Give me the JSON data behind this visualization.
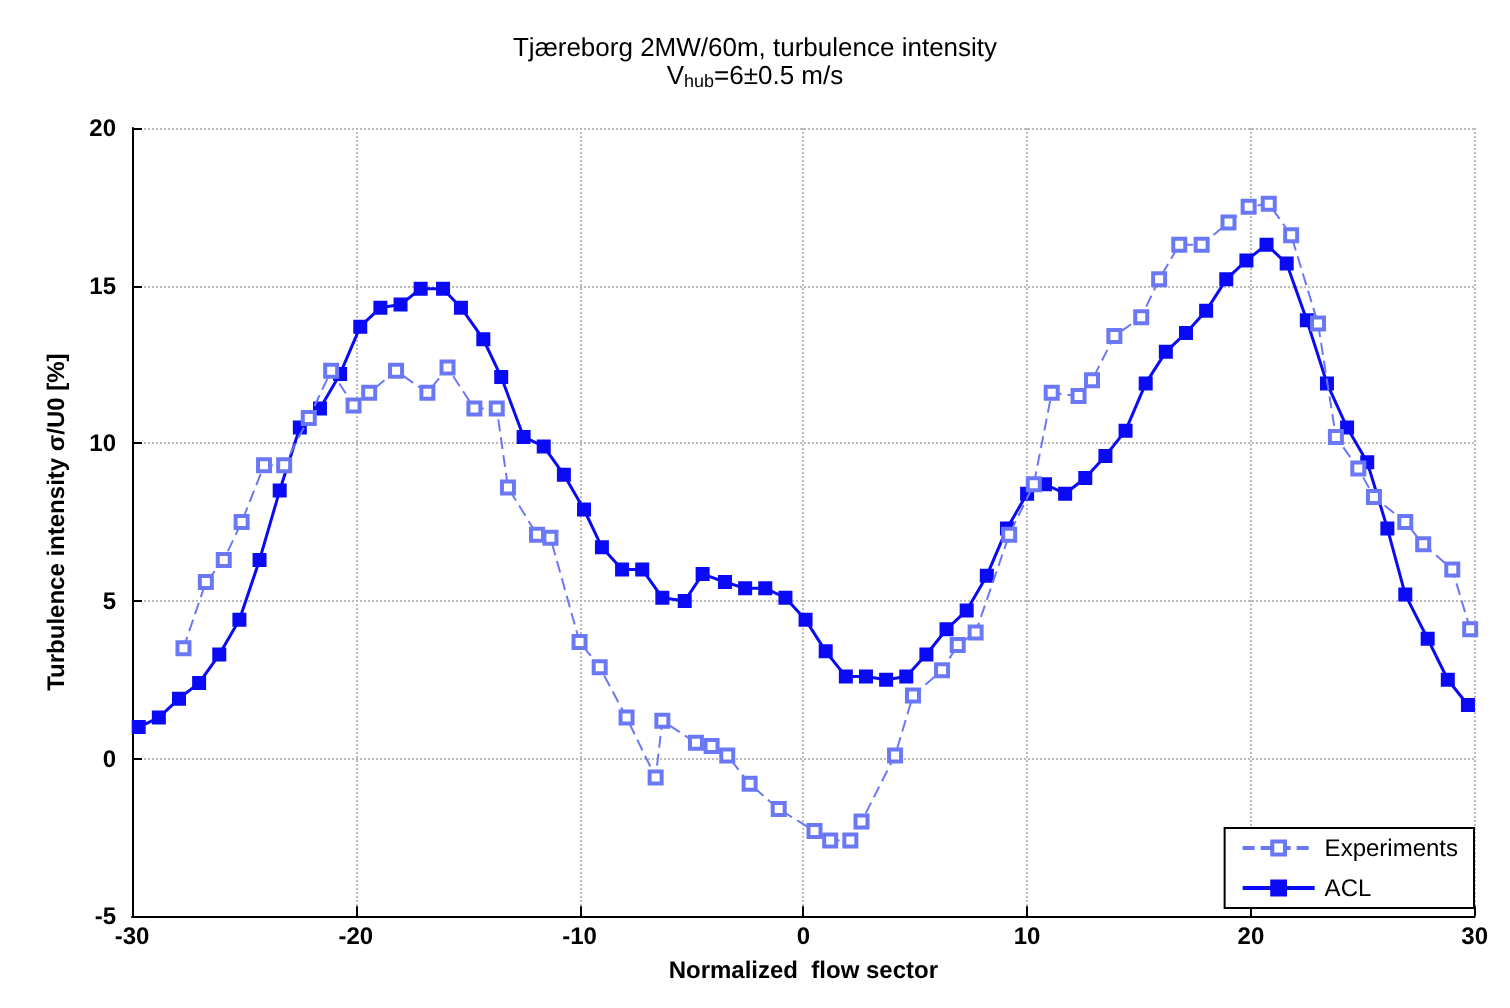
{
  "chart_data": {
    "type": "line",
    "title": "Tjæreborg 2MW/60m, turbulence intensity",
    "subtitle": "V$_{hub}$=6±0.5 m/s",
    "xlabel": "Normalized  flow sector",
    "ylabel": "Turbulence intensity σ/U0 [%]",
    "xlim": [
      -30,
      30
    ],
    "xticks": [
      -30,
      -20,
      -10,
      0,
      10,
      20,
      30
    ],
    "ylim": [
      -5,
      20
    ],
    "yticks": [
      -5,
      0,
      5,
      10,
      15,
      20
    ],
    "grid": true,
    "legend": "bottom right",
    "series": [
      {
        "name": "Experiments",
        "color": "#6b78f5",
        "marker": "square",
        "line_style": "dashed",
        "x": [
          -27.7,
          -26.7,
          -25.9,
          -25.1,
          -24.1,
          -23.2,
          -22.1,
          -21.1,
          -20.1,
          -19.4,
          -18.2,
          -16.8,
          -15.9,
          -14.7,
          -13.7,
          -13.2,
          -11.9,
          -11.3,
          -10.0,
          -9.1,
          -7.9,
          -6.6,
          -6.3,
          -4.8,
          -4.1,
          -3.4,
          -2.4,
          -1.1,
          0.5,
          1.2,
          2.1,
          2.6,
          4.1,
          4.9,
          6.2,
          6.9,
          7.7,
          9.2,
          10.3,
          11.1,
          12.3,
          12.9,
          13.9,
          15.1,
          15.9,
          16.8,
          17.8,
          19.0,
          19.9,
          20.8,
          21.8,
          23.0,
          23.8,
          24.8,
          25.5,
          26.9,
          27.7,
          29.0,
          29.8
        ],
        "values": [
          3.5,
          5.6,
          6.3,
          7.5,
          9.3,
          9.3,
          10.8,
          12.3,
          11.2,
          11.6,
          12.3,
          11.6,
          12.4,
          11.1,
          11.1,
          8.6,
          7.1,
          7.0,
          3.7,
          2.9,
          1.3,
          -0.6,
          1.2,
          0.5,
          0.4,
          0.1,
          -0.8,
          -1.6,
          -2.3,
          -2.6,
          -2.6,
          -2.0,
          0.1,
          2.0,
          2.8,
          3.6,
          4.0,
          7.1,
          8.7,
          11.6,
          11.5,
          12.0,
          13.4,
          14.0,
          15.2,
          16.3,
          16.3,
          17.0,
          17.5,
          17.6,
          16.6,
          13.8,
          10.2,
          9.2,
          8.3,
          7.5,
          6.8,
          6.0,
          4.1
        ]
      },
      {
        "name": "ACL",
        "color": "#0a0af5",
        "marker": "square",
        "line_style": "solid",
        "x": [
          -29.7,
          -28.8,
          -27.9,
          -27.0,
          -26.1,
          -25.2,
          -24.3,
          -23.4,
          -22.5,
          -21.6,
          -20.7,
          -19.8,
          -18.9,
          -18.0,
          -17.1,
          -16.1,
          -15.3,
          -14.3,
          -13.5,
          -12.5,
          -11.6,
          -10.7,
          -9.8,
          -9.0,
          -8.1,
          -7.2,
          -6.3,
          -5.3,
          -4.5,
          -3.5,
          -2.6,
          -1.7,
          -0.8,
          0.1,
          1.0,
          1.9,
          2.8,
          3.7,
          4.6,
          5.5,
          6.4,
          7.3,
          8.2,
          9.1,
          10.0,
          10.8,
          11.7,
          12.6,
          13.5,
          14.4,
          15.3,
          16.2,
          17.1,
          18.0,
          18.9,
          19.8,
          20.7,
          21.6,
          22.5,
          23.4,
          24.3,
          25.2,
          26.1,
          26.9,
          27.9,
          28.8,
          29.7
        ],
        "values": [
          1.0,
          1.3,
          1.9,
          2.4,
          3.3,
          4.4,
          6.3,
          8.5,
          10.5,
          11.1,
          12.2,
          13.7,
          14.3,
          14.4,
          14.9,
          14.9,
          14.3,
          13.3,
          12.1,
          10.2,
          9.9,
          9.0,
          7.9,
          6.7,
          6.0,
          6.0,
          5.1,
          5.0,
          5.85,
          5.6,
          5.4,
          5.4,
          5.1,
          4.4,
          3.4,
          2.6,
          2.6,
          2.5,
          2.6,
          3.3,
          4.1,
          4.7,
          5.8,
          7.3,
          8.4,
          8.7,
          8.4,
          8.9,
          9.6,
          10.4,
          11.9,
          12.9,
          13.5,
          14.2,
          15.2,
          15.8,
          16.3,
          15.7,
          13.9,
          11.9,
          10.5,
          9.4,
          7.3,
          5.2,
          3.8,
          2.5,
          1.7
        ]
      }
    ]
  }
}
